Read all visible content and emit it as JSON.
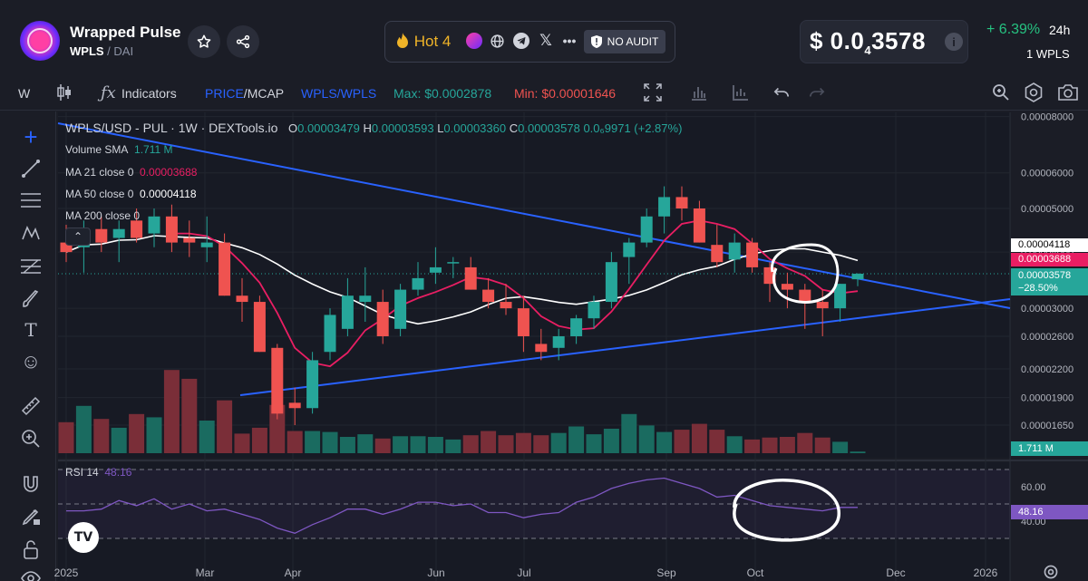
{
  "header": {
    "token_name": "Wrapped Pulse",
    "token_symbol": "WPLS",
    "quote_symbol": "DAI",
    "hot_label": "Hot 4",
    "audit_label": "NO AUDIT",
    "price_main": "$ 0.0",
    "price_subscript": "4",
    "price_tail": "3578",
    "change": "+ 6.39%",
    "change_period": "24h",
    "unit": "1 WPLS",
    "icons": [
      "star-icon",
      "share-icon",
      "fire-icon",
      "token-icon",
      "globe-icon",
      "telegram-icon",
      "x-icon",
      "more-icon",
      "shield-icon",
      "info-icon"
    ]
  },
  "toolbar": {
    "interval": "W",
    "indicators": "Indicators",
    "price_mcap_price": "PRICE",
    "price_mcap_sep": "/",
    "price_mcap_mcap": "MCAP",
    "pair": "WPLS/WPLS",
    "max": "Max: $0.0002878",
    "min": "Min: $0.00001646",
    "colors": {
      "max": "#26a69a",
      "min": "#ef5350",
      "accent": "#2962ff"
    }
  },
  "legend": {
    "title": "WPLS/USD - PUL · 1W · DEXTools.io",
    "o_label": "O",
    "o": "0.00003479",
    "h_label": "H",
    "h": "0.00003593",
    "l_label": "L",
    "l": "0.00003360",
    "c_label": "C",
    "c": "0.00003578",
    "chg": "0.0₆9971 (+2.87%)",
    "volume": "Volume SMA",
    "volume_val": "1.711 M",
    "ma21": "MA 21 close 0",
    "ma21_val": "0.00003688",
    "ma50": "MA 50 close 0",
    "ma50_val": "0.00004118",
    "ma200": "MA 200 close 0",
    "rsi": "RSI 14",
    "rsi_val": "48.16"
  },
  "axis_badges": {
    "ma50": "0.00004118",
    "ma21": "0.00003688",
    "price": "0.00003578",
    "price_change": "−28.50%",
    "volume": "1.711 M",
    "rsi": "48.16"
  },
  "chart_data": {
    "type": "candlestick",
    "y_ticks": [
      "0.00008000",
      "0.00006000",
      "0.00005000",
      "0.00004000",
      "0.00003000",
      "0.00002600",
      "0.00002200",
      "0.00001900",
      "0.00001650"
    ],
    "x_ticks": [
      "2025",
      "Mar",
      "Apr",
      "Jun",
      "Jul",
      "Sep",
      "Oct",
      "Dec",
      "2026"
    ],
    "log_scale": true,
    "candles": [
      {
        "o": 4.2e-05,
        "h": 4.6e-05,
        "l": 3.8e-05,
        "c": 4e-05
      },
      {
        "o": 4.1e-05,
        "h": 4.7e-05,
        "l": 3.6e-05,
        "c": 4.3e-05
      },
      {
        "o": 4.5e-05,
        "h": 4.8e-05,
        "l": 4e-05,
        "c": 4.2e-05
      },
      {
        "o": 4.3e-05,
        "h": 4.7e-05,
        "l": 3.8e-05,
        "c": 4.5e-05
      },
      {
        "o": 4.7e-05,
        "h": 5e-05,
        "l": 4.2e-05,
        "c": 4.3e-05
      },
      {
        "o": 4.4e-05,
        "h": 5e-05,
        "l": 4.1e-05,
        "c": 4.8e-05
      },
      {
        "o": 4.8e-05,
        "h": 5.1e-05,
        "l": 4e-05,
        "c": 4.2e-05
      },
      {
        "o": 4.3e-05,
        "h": 4.7e-05,
        "l": 3.9e-05,
        "c": 4.2e-05
      },
      {
        "o": 4.1e-05,
        "h": 4.8e-05,
        "l": 3.8e-05,
        "c": 4.2e-05
      },
      {
        "o": 4.2e-05,
        "h": 4.4e-05,
        "l": 3.2e-05,
        "c": 3.2e-05
      },
      {
        "o": 3.2e-05,
        "h": 3.5e-05,
        "l": 2.8e-05,
        "c": 3.1e-05
      },
      {
        "o": 3.1e-05,
        "h": 3.2e-05,
        "l": 2.4e-05,
        "c": 2.4e-05
      },
      {
        "o": 2.45e-05,
        "h": 2.5e-05,
        "l": 1.7e-05,
        "c": 1.75e-05
      },
      {
        "o": 1.85e-05,
        "h": 2e-05,
        "l": 1.65e-05,
        "c": 1.8e-05
      },
      {
        "o": 1.8e-05,
        "h": 2.4e-05,
        "l": 1.75e-05,
        "c": 2.3e-05
      },
      {
        "o": 2.4e-05,
        "h": 3e-05,
        "l": 2.3e-05,
        "c": 2.9e-05
      },
      {
        "o": 2.7e-05,
        "h": 3.5e-05,
        "l": 2.6e-05,
        "c": 3.2e-05
      },
      {
        "o": 3.1e-05,
        "h": 3.7e-05,
        "l": 2.8e-05,
        "c": 3.2e-05
      },
      {
        "o": 3.1e-05,
        "h": 3.3e-05,
        "l": 2.5e-05,
        "c": 2.6e-05
      },
      {
        "o": 2.7e-05,
        "h": 3.4e-05,
        "l": 2.6e-05,
        "c": 3.3e-05
      },
      {
        "o": 3.3e-05,
        "h": 3.8e-05,
        "l": 3.2e-05,
        "c": 3.5e-05
      },
      {
        "o": 3.6e-05,
        "h": 4.1e-05,
        "l": 3.4e-05,
        "c": 3.7e-05
      },
      {
        "o": 3.8e-05,
        "h": 3.9e-05,
        "l": 3.5e-05,
        "c": 3.8e-05
      },
      {
        "o": 3.7e-05,
        "h": 3.9e-05,
        "l": 3.3e-05,
        "c": 3.3e-05
      },
      {
        "o": 3.3e-05,
        "h": 3.5e-05,
        "l": 3e-05,
        "c": 3.1e-05
      },
      {
        "o": 3.1e-05,
        "h": 3.4e-05,
        "l": 2.9e-05,
        "c": 3e-05
      },
      {
        "o": 3e-05,
        "h": 3.2e-05,
        "l": 2.4e-05,
        "c": 2.6e-05
      },
      {
        "o": 2.5e-05,
        "h": 2.7e-05,
        "l": 2.3e-05,
        "c": 2.4e-05
      },
      {
        "o": 2.45e-05,
        "h": 2.7e-05,
        "l": 2.3e-05,
        "c": 2.6e-05
      },
      {
        "o": 2.6e-05,
        "h": 2.9e-05,
        "l": 2.5e-05,
        "c": 2.85e-05
      },
      {
        "o": 2.85e-05,
        "h": 3.2e-05,
        "l": 2.7e-05,
        "c": 3.1e-05
      },
      {
        "o": 3.1e-05,
        "h": 4e-05,
        "l": 3e-05,
        "c": 3.8e-05
      },
      {
        "o": 3.9e-05,
        "h": 4.3e-05,
        "l": 3.4e-05,
        "c": 4.2e-05
      },
      {
        "o": 4.2e-05,
        "h": 5e-05,
        "l": 4.1e-05,
        "c": 4.8e-05
      },
      {
        "o": 4.8e-05,
        "h": 5.6e-05,
        "l": 4.4e-05,
        "c": 5.3e-05
      },
      {
        "o": 5.3e-05,
        "h": 5.6e-05,
        "l": 4.7e-05,
        "c": 5e-05
      },
      {
        "o": 5e-05,
        "h": 5.2e-05,
        "l": 4.2e-05,
        "c": 4.2e-05
      },
      {
        "o": 4.15e-05,
        "h": 4.6e-05,
        "l": 3.7e-05,
        "c": 3.8e-05
      },
      {
        "o": 3.85e-05,
        "h": 4.4e-05,
        "l": 3.6e-05,
        "c": 4.2e-05
      },
      {
        "o": 4.2e-05,
        "h": 4.3e-05,
        "l": 3.6e-05,
        "c": 3.7e-05
      },
      {
        "o": 3.7e-05,
        "h": 3.8e-05,
        "l": 3.1e-05,
        "c": 3.4e-05
      },
      {
        "o": 3.4e-05,
        "h": 3.6e-05,
        "l": 3e-05,
        "c": 3.3e-05
      },
      {
        "o": 3.3e-05,
        "h": 3.4e-05,
        "l": 2.7e-05,
        "c": 3.1e-05
      },
      {
        "o": 3.1e-05,
        "h": 3.3e-05,
        "l": 2.6e-05,
        "c": 3e-05
      },
      {
        "o": 3e-05,
        "h": 3.4e-05,
        "l": 2.8e-05,
        "c": 3.4e-05
      },
      {
        "o": 3.48e-05,
        "h": 3.59e-05,
        "l": 3.36e-05,
        "c": 3.58e-05
      }
    ],
    "volume": [
      0.95,
      1.45,
      1.05,
      0.78,
      1.2,
      1.1,
      2.55,
      2.28,
      1.0,
      1.62,
      0.6,
      0.78,
      1.48,
      0.68,
      0.68,
      0.65,
      0.5,
      0.58,
      0.45,
      0.52,
      0.52,
      0.5,
      0.42,
      0.55,
      0.68,
      0.55,
      0.62,
      0.55,
      0.62,
      0.82,
      0.58,
      0.75,
      1.2,
      0.85,
      0.65,
      0.72,
      0.9,
      0.72,
      0.52,
      0.42,
      0.48,
      0.5,
      0.62,
      0.48,
      0.35,
      0.05
    ],
    "volume_sma": "1.711 M",
    "rsi": [
      46,
      46,
      47,
      52,
      49,
      53,
      47,
      50,
      46,
      47,
      44,
      41,
      36,
      33,
      38,
      42,
      47,
      47,
      44,
      47,
      51,
      51,
      49,
      50,
      45,
      45,
      42,
      44,
      45,
      51,
      54,
      59,
      62,
      64,
      65,
      62,
      59,
      54,
      55,
      52,
      49,
      48,
      47,
      46,
      48,
      48
    ]
  }
}
